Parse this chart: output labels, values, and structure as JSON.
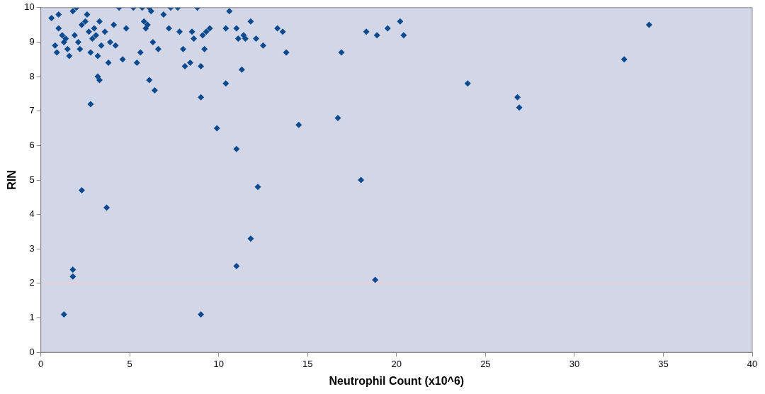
{
  "chart_data": {
    "type": "scatter",
    "xlabel": "Neutrophil Count (x10^6)",
    "ylabel": "RIN",
    "xlim": [
      0,
      40
    ],
    "xticks": [
      0,
      5,
      10,
      15,
      20,
      25,
      30,
      35,
      40
    ],
    "ylim": [
      0,
      10
    ],
    "yticks": [
      0,
      1,
      2,
      3,
      4,
      5,
      6,
      7,
      8,
      9,
      10
    ],
    "grid": false,
    "legend": false,
    "marker": "diamond",
    "ref_lines": [
      {
        "axis": "y",
        "value": 2,
        "color": "#f0c8d0"
      }
    ],
    "series": [
      {
        "color": "#0b4a8f",
        "x": [
          0.6,
          1.0,
          0.8,
          0.9,
          1.0,
          1.2,
          1.3,
          1.4,
          1.5,
          1.6,
          1.8,
          2.0,
          1.9,
          2.1,
          2.2,
          2.3,
          2.5,
          2.6,
          2.7,
          2.8,
          2.9,
          3.0,
          3.1,
          3.2,
          3.3,
          3.4,
          3.6,
          3.8,
          3.9,
          4.1,
          4.2,
          4.4,
          4.6,
          4.8,
          5.2,
          5.4,
          5.6,
          5.7,
          5.8,
          5.9,
          6.0,
          6.1,
          6.2,
          6.3,
          6.6,
          6.9,
          7.2,
          7.3,
          7.7,
          7.8,
          8.0,
          8.1,
          8.4,
          8.5,
          8.6,
          8.8,
          9.0,
          9.1,
          9.2,
          9.3,
          9.5,
          10.4,
          10.6,
          11.0,
          11.1,
          11.4,
          11.5,
          11.8,
          12.1,
          12.5,
          13.3,
          13.6,
          13.8,
          11.3,
          10.4,
          9.0,
          6.1,
          6.4,
          3.2,
          3.3,
          2.8,
          18.3,
          18.9,
          19.5,
          20.2,
          20.4,
          16.9,
          24.0,
          26.8,
          26.9,
          32.8,
          34.2,
          16.7,
          14.5,
          9.9,
          11.0,
          18.0,
          12.2,
          2.3,
          3.7,
          11.8,
          11.0,
          1.8,
          1.8,
          18.8,
          1.3,
          9.0
        ],
        "values": [
          9.7,
          9.8,
          8.9,
          8.7,
          9.4,
          9.2,
          9.0,
          9.1,
          8.8,
          8.6,
          9.9,
          10,
          9.2,
          9.0,
          8.8,
          9.5,
          9.6,
          9.8,
          9.3,
          8.7,
          9.1,
          9.4,
          9.2,
          8.6,
          9.6,
          8.9,
          9.3,
          8.4,
          9.0,
          9.5,
          8.9,
          10,
          8.5,
          9.4,
          10,
          8.4,
          8.7,
          10,
          9.6,
          9.4,
          9.5,
          10,
          9.9,
          9.0,
          8.8,
          9.8,
          9.4,
          10,
          10,
          9.3,
          8.8,
          8.3,
          8.4,
          9.3,
          9.1,
          10,
          8.3,
          9.2,
          8.8,
          9.3,
          9.4,
          9.4,
          9.9,
          9.4,
          9.1,
          9.2,
          9.1,
          9.6,
          9.1,
          8.9,
          9.4,
          9.3,
          8.7,
          8.2,
          7.8,
          7.4,
          7.9,
          7.6,
          8.0,
          7.9,
          7.2,
          9.3,
          9.2,
          9.4,
          9.6,
          9.2,
          8.7,
          7.8,
          7.4,
          7.1,
          8.5,
          9.5,
          6.8,
          6.6,
          6.5,
          5.9,
          5.0,
          4.8,
          4.7,
          4.2,
          3.3,
          2.5,
          2.4,
          2.2,
          2.1,
          1.1,
          1.1
        ]
      }
    ]
  }
}
